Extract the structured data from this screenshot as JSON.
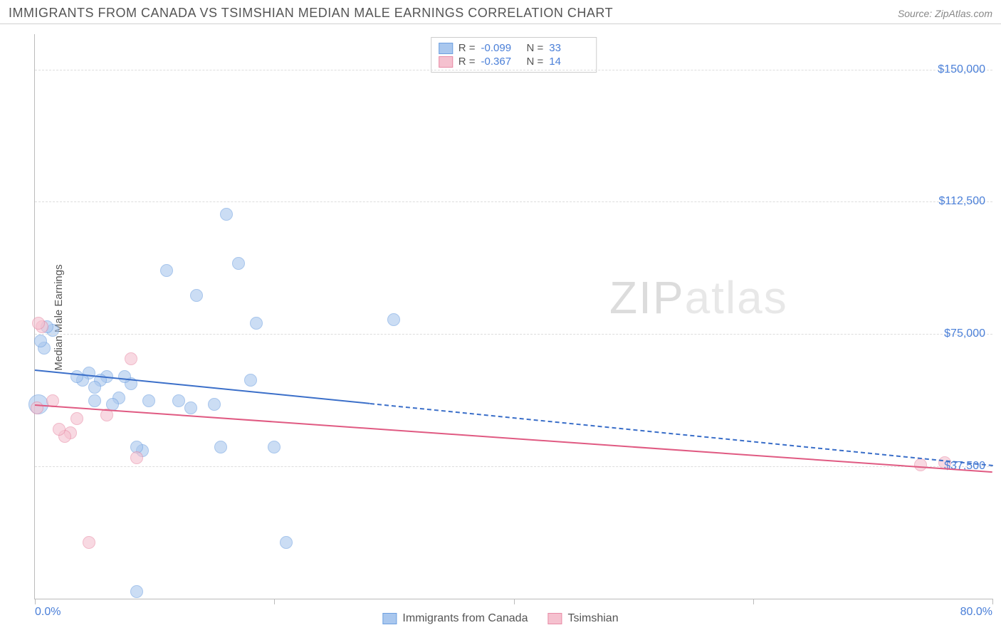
{
  "title": "IMMIGRANTS FROM CANADA VS TSIMSHIAN MEDIAN MALE EARNINGS CORRELATION CHART",
  "source": "Source: ZipAtlas.com",
  "ylabel": "Median Male Earnings",
  "watermark_zip": "ZIP",
  "watermark_rest": "atlas",
  "chart": {
    "type": "scatter",
    "background_color": "#ffffff",
    "grid_color": "#dddddd",
    "axis_color": "#bbbbbb",
    "xlim": [
      0,
      80
    ],
    "ylim": [
      0,
      160000
    ],
    "x_tick_positions": [
      0,
      20,
      40,
      60,
      80
    ],
    "x_axis_labels": [
      {
        "pos": 0,
        "text": "0.0%",
        "align": "left"
      },
      {
        "pos": 80,
        "text": "80.0%",
        "align": "right"
      }
    ],
    "y_ticks": [
      {
        "v": 37500,
        "label": "$37,500"
      },
      {
        "v": 75000,
        "label": "$75,000"
      },
      {
        "v": 112500,
        "label": "$112,500"
      },
      {
        "v": 150000,
        "label": "$150,000"
      }
    ],
    "series": [
      {
        "name": "Immigrants from Canada",
        "color_fill": "#a9c7ee",
        "color_stroke": "#6ea0e0",
        "line_color": "#3b6fc9",
        "marker_radius": 9,
        "fill_opacity": 0.6,
        "R": "-0.099",
        "N": "33",
        "trend": {
          "x1": 0,
          "y1": 65000,
          "x_solid_to": 28,
          "x2": 80,
          "y2": 38000
        },
        "points": [
          {
            "x": 0.5,
            "y": 73000
          },
          {
            "x": 0.8,
            "y": 71000
          },
          {
            "x": 0.3,
            "y": 55000,
            "r": 14
          },
          {
            "x": 1.0,
            "y": 77000
          },
          {
            "x": 1.5,
            "y": 76000
          },
          {
            "x": 3.5,
            "y": 63000
          },
          {
            "x": 4.0,
            "y": 62000
          },
          {
            "x": 4.5,
            "y": 64000
          },
          {
            "x": 5.0,
            "y": 60000
          },
          {
            "x": 5.5,
            "y": 62000
          },
          {
            "x": 6.0,
            "y": 63000
          },
          {
            "x": 5.0,
            "y": 56000
          },
          {
            "x": 6.5,
            "y": 55000
          },
          {
            "x": 7.0,
            "y": 57000
          },
          {
            "x": 7.5,
            "y": 63000
          },
          {
            "x": 8.0,
            "y": 61000
          },
          {
            "x": 8.5,
            "y": 43000
          },
          {
            "x": 9.0,
            "y": 42000
          },
          {
            "x": 9.5,
            "y": 56000
          },
          {
            "x": 8.5,
            "y": 2000
          },
          {
            "x": 11.0,
            "y": 93000
          },
          {
            "x": 12.0,
            "y": 56000
          },
          {
            "x": 13.0,
            "y": 54000
          },
          {
            "x": 13.5,
            "y": 86000
          },
          {
            "x": 15.0,
            "y": 55000
          },
          {
            "x": 15.5,
            "y": 43000
          },
          {
            "x": 16.0,
            "y": 109000
          },
          {
            "x": 17.0,
            "y": 95000
          },
          {
            "x": 18.5,
            "y": 78000
          },
          {
            "x": 18.0,
            "y": 62000
          },
          {
            "x": 20.0,
            "y": 43000
          },
          {
            "x": 21.0,
            "y": 16000
          },
          {
            "x": 30.0,
            "y": 79000
          }
        ]
      },
      {
        "name": "Tsimshian",
        "color_fill": "#f5c1cf",
        "color_stroke": "#e88ba6",
        "line_color": "#e05a82",
        "marker_radius": 9,
        "fill_opacity": 0.6,
        "R": "-0.367",
        "N": "14",
        "trend": {
          "x1": 0,
          "y1": 55000,
          "x_solid_to": 80,
          "x2": 80,
          "y2": 36000
        },
        "points": [
          {
            "x": 0.3,
            "y": 78000
          },
          {
            "x": 0.6,
            "y": 77000
          },
          {
            "x": 0.2,
            "y": 54000
          },
          {
            "x": 1.5,
            "y": 56000
          },
          {
            "x": 2.0,
            "y": 48000
          },
          {
            "x": 2.5,
            "y": 46000
          },
          {
            "x": 3.0,
            "y": 47000
          },
          {
            "x": 3.5,
            "y": 51000
          },
          {
            "x": 4.5,
            "y": 16000
          },
          {
            "x": 8.0,
            "y": 68000
          },
          {
            "x": 8.5,
            "y": 40000
          },
          {
            "x": 6.0,
            "y": 52000
          },
          {
            "x": 74.0,
            "y": 38000
          },
          {
            "x": 76.0,
            "y": 38500
          }
        ]
      }
    ]
  },
  "bottom_legend": [
    {
      "label": "Immigrants from Canada",
      "fill": "#a9c7ee",
      "stroke": "#6ea0e0"
    },
    {
      "label": "Tsimshian",
      "fill": "#f5c1cf",
      "stroke": "#e88ba6"
    }
  ],
  "tick_label_color": "#4a7fd8",
  "text_color": "#555555"
}
